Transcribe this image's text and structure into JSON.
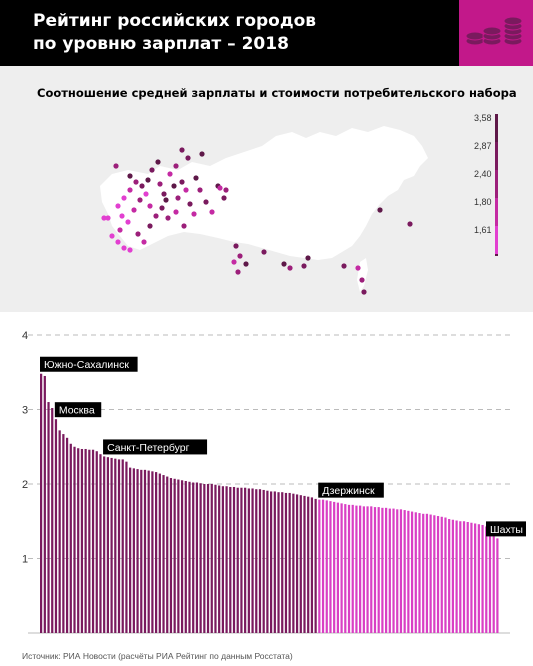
{
  "header": {
    "title_line1": "Рейтинг российских городов",
    "title_line2": "по уровню зарплат – 2018",
    "background_color": "#000000",
    "accent_color": "#c2188a",
    "icon": "coins-stack-icon"
  },
  "map": {
    "subtitle": "Соотношение средней зарплаты и стоимости потребительского набора",
    "legend": [
      "3,58",
      "2,87",
      "2,40",
      "1,80",
      "1,61"
    ],
    "legend_colors": [
      "#5e1848",
      "#7a1a5e",
      "#9c1f7a",
      "#c42aa3",
      "#e23fd0"
    ]
  },
  "chart_data": {
    "type": "bar",
    "ylim": [
      0,
      4
    ],
    "yticks": [
      1,
      2,
      3,
      4
    ],
    "grid": true,
    "values": [
      3.48,
      3.45,
      3.1,
      3.02,
      2.87,
      2.72,
      2.67,
      2.62,
      2.54,
      2.5,
      2.48,
      2.47,
      2.47,
      2.46,
      2.46,
      2.44,
      2.4,
      2.37,
      2.36,
      2.35,
      2.34,
      2.33,
      2.33,
      2.3,
      2.22,
      2.21,
      2.2,
      2.19,
      2.19,
      2.18,
      2.17,
      2.16,
      2.14,
      2.12,
      2.1,
      2.08,
      2.07,
      2.06,
      2.05,
      2.04,
      2.03,
      2.02,
      2.02,
      2.01,
      2.0,
      2.0,
      2.0,
      1.99,
      1.98,
      1.97,
      1.97,
      1.96,
      1.96,
      1.95,
      1.95,
      1.95,
      1.94,
      1.94,
      1.93,
      1.93,
      1.92,
      1.91,
      1.9,
      1.9,
      1.89,
      1.89,
      1.88,
      1.88,
      1.87,
      1.86,
      1.85,
      1.84,
      1.83,
      1.82,
      1.8,
      1.79,
      1.79,
      1.78,
      1.77,
      1.76,
      1.75,
      1.74,
      1.73,
      1.72,
      1.72,
      1.71,
      1.71,
      1.7,
      1.7,
      1.7,
      1.69,
      1.69,
      1.68,
      1.68,
      1.67,
      1.67,
      1.66,
      1.66,
      1.65,
      1.64,
      1.63,
      1.62,
      1.61,
      1.6,
      1.6,
      1.59,
      1.58,
      1.57,
      1.56,
      1.55,
      1.53,
      1.52,
      1.51,
      1.5,
      1.5,
      1.49,
      1.48,
      1.47,
      1.46,
      1.45,
      1.43,
      1.42,
      1.38,
      1.27
    ],
    "dark_color": "#7a1a5e",
    "light_color": "#d93fc4",
    "dark_count": 75,
    "annotations": [
      {
        "label": "Южно-Сахалинск",
        "index": 0
      },
      {
        "label": "Москва",
        "index": 4
      },
      {
        "label": "Санкт-Петербург",
        "index": 17
      },
      {
        "label": "Дзержинск",
        "index": 75
      },
      {
        "label": "Шахты",
        "index": 123
      }
    ]
  },
  "source": "Источник: РИА Новости (расчёты РИА Рейтинг по данным Росстата)"
}
